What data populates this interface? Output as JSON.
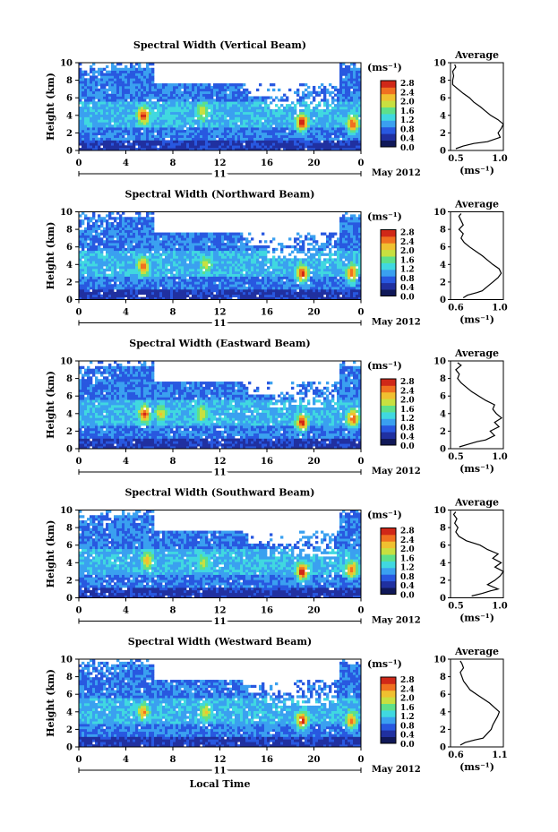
{
  "figure": {
    "colorbar_unit": "(ms⁻¹)",
    "colorbar_ticks": [
      "2.8",
      "2.4",
      "2.0",
      "1.6",
      "1.2",
      "0.8",
      "0.4",
      "0.0"
    ],
    "colorbar_range": [
      0,
      2.8
    ],
    "colormap": [
      "#101858",
      "#2030a0",
      "#2858e0",
      "#3aa0f0",
      "#40d8e0",
      "#5ee08a",
      "#c8e040",
      "#f0c030",
      "#f07020",
      "#d02818"
    ],
    "x_ticks": [
      "0",
      "4",
      "8",
      "12",
      "16",
      "20",
      "0"
    ],
    "y_ticks": [
      "0",
      "2",
      "4",
      "6",
      "8",
      "10"
    ],
    "ylabel": "Height (km)",
    "date_day": "11",
    "date_month": "May 2012",
    "xlabel": "Local Time",
    "avg_title": "Average",
    "avg_xlabel": "(ms⁻¹)"
  },
  "chart_data": [
    {
      "type": "heatmap",
      "title": "Spectral Width (Vertical Beam)",
      "xlim": [
        0,
        24
      ],
      "ylim": [
        0,
        10
      ],
      "hotspots": [
        {
          "t": 5.5,
          "h": 4.0,
          "v": 2.7
        },
        {
          "t": 10.5,
          "h": 4.5,
          "v": 2.0
        },
        {
          "t": 19.0,
          "h": 3.2,
          "v": 2.8
        },
        {
          "t": 23.3,
          "h": 3.0,
          "v": 2.6
        }
      ],
      "profile": {
        "type": "line",
        "xlim": [
          0.5,
          1.0
        ],
        "x_ticks": [
          "0.5",
          "1.0"
        ],
        "heights": [
          0.2,
          0.5,
          0.8,
          1.0,
          1.5,
          2.0,
          2.5,
          3.0,
          3.5,
          4.0,
          4.5,
          5.0,
          5.5,
          6.0,
          6.5,
          7.0,
          7.5,
          8.0,
          8.5,
          9.0,
          9.5,
          9.8
        ],
        "values": [
          0.55,
          0.62,
          0.72,
          0.85,
          0.97,
          0.95,
          0.98,
          1.0,
          0.95,
          0.88,
          0.83,
          0.78,
          0.72,
          0.68,
          0.62,
          0.57,
          0.52,
          0.52,
          0.53,
          0.52,
          0.55,
          0.54
        ]
      }
    },
    {
      "type": "heatmap",
      "title": "Spectral Width (Northward Beam)",
      "xlim": [
        0,
        24
      ],
      "ylim": [
        0,
        10
      ],
      "hotspots": [
        {
          "t": 5.5,
          "h": 3.8,
          "v": 2.6
        },
        {
          "t": 10.8,
          "h": 4.0,
          "v": 1.9
        },
        {
          "t": 19.0,
          "h": 3.0,
          "v": 2.7
        },
        {
          "t": 23.2,
          "h": 3.0,
          "v": 2.5
        }
      ],
      "profile": {
        "type": "line",
        "xlim": [
          0.5,
          1.0
        ],
        "x_ticks": [
          "0.6",
          "1.0"
        ],
        "heights": [
          0.2,
          0.5,
          0.8,
          1.0,
          1.5,
          2.0,
          2.5,
          3.0,
          3.5,
          4.0,
          4.5,
          5.0,
          5.5,
          6.0,
          6.5,
          7.0,
          7.5,
          8.0,
          8.5,
          9.0,
          9.5,
          9.8
        ],
        "values": [
          0.62,
          0.66,
          0.75,
          0.8,
          0.85,
          0.9,
          0.95,
          0.98,
          0.96,
          0.9,
          0.85,
          0.8,
          0.74,
          0.68,
          0.63,
          0.6,
          0.62,
          0.58,
          0.62,
          0.6,
          0.58,
          0.6
        ]
      }
    },
    {
      "type": "heatmap",
      "title": "Spectral Width (Eastward Beam)",
      "xlim": [
        0,
        24
      ],
      "ylim": [
        0,
        10
      ],
      "hotspots": [
        {
          "t": 5.6,
          "h": 4.0,
          "v": 2.6
        },
        {
          "t": 7.0,
          "h": 4.0,
          "v": 2.0
        },
        {
          "t": 10.5,
          "h": 4.0,
          "v": 2.0
        },
        {
          "t": 19.0,
          "h": 3.0,
          "v": 2.7
        },
        {
          "t": 23.3,
          "h": 3.5,
          "v": 2.6
        }
      ],
      "profile": {
        "type": "line",
        "xlim": [
          0.5,
          1.1
        ],
        "x_ticks": [
          "0.5",
          "1.0"
        ],
        "heights": [
          0.2,
          0.5,
          0.8,
          1.0,
          1.5,
          2.0,
          2.5,
          3.0,
          3.5,
          4.0,
          4.5,
          5.0,
          5.5,
          6.0,
          6.5,
          7.0,
          7.5,
          8.0,
          8.5,
          9.0,
          9.5,
          9.8
        ],
        "values": [
          0.6,
          0.7,
          0.8,
          0.9,
          1.0,
          0.95,
          1.05,
          1.0,
          1.08,
          1.02,
          0.98,
          1.0,
          0.9,
          0.82,
          0.74,
          0.68,
          0.62,
          0.58,
          0.6,
          0.56,
          0.62,
          0.58
        ]
      }
    },
    {
      "type": "heatmap",
      "title": "Spectral Width (Southward Beam)",
      "xlim": [
        0,
        24
      ],
      "ylim": [
        0,
        10
      ],
      "hotspots": [
        {
          "t": 5.8,
          "h": 4.3,
          "v": 2.2
        },
        {
          "t": 10.6,
          "h": 4.0,
          "v": 1.8
        },
        {
          "t": 19.0,
          "h": 3.0,
          "v": 2.8
        },
        {
          "t": 23.2,
          "h": 3.2,
          "v": 2.5
        }
      ],
      "profile": {
        "type": "line",
        "xlim": [
          0.5,
          1.0
        ],
        "x_ticks": [
          "0.5",
          "1.0"
        ],
        "heights": [
          0.2,
          0.5,
          0.8,
          1.0,
          1.5,
          2.0,
          2.5,
          3.0,
          3.5,
          4.0,
          4.5,
          5.0,
          5.5,
          6.0,
          6.5,
          7.0,
          7.5,
          8.0,
          8.5,
          9.0,
          9.5,
          9.8
        ],
        "values": [
          0.7,
          0.8,
          0.88,
          0.95,
          0.85,
          0.92,
          0.97,
          1.0,
          0.92,
          0.98,
          0.9,
          0.95,
          0.85,
          0.78,
          0.65,
          0.58,
          0.55,
          0.57,
          0.54,
          0.56,
          0.53,
          0.55
        ]
      }
    },
    {
      "type": "heatmap",
      "title": "Spectral Width (Westward Beam)",
      "xlim": [
        0,
        24
      ],
      "ylim": [
        0,
        10
      ],
      "hotspots": [
        {
          "t": 5.5,
          "h": 4.0,
          "v": 2.3
        },
        {
          "t": 10.8,
          "h": 4.0,
          "v": 2.0
        },
        {
          "t": 19.0,
          "h": 3.0,
          "v": 2.7
        },
        {
          "t": 23.2,
          "h": 3.0,
          "v": 2.4
        }
      ],
      "profile": {
        "type": "line",
        "xlim": [
          0.5,
          1.15
        ],
        "x_ticks": [
          "0.6",
          "1.1"
        ],
        "heights": [
          0.2,
          0.5,
          0.8,
          1.0,
          1.5,
          2.0,
          2.5,
          3.0,
          3.5,
          4.0,
          4.5,
          5.0,
          5.5,
          6.0,
          6.5,
          7.0,
          7.5,
          8.0,
          8.5,
          9.0,
          9.5,
          9.8
        ],
        "values": [
          0.62,
          0.68,
          0.8,
          0.9,
          0.95,
          1.0,
          1.02,
          1.05,
          1.08,
          1.1,
          1.04,
          0.98,
          0.9,
          0.82,
          0.74,
          0.7,
          0.66,
          0.64,
          0.62,
          0.66,
          0.64,
          0.62
        ]
      }
    }
  ]
}
